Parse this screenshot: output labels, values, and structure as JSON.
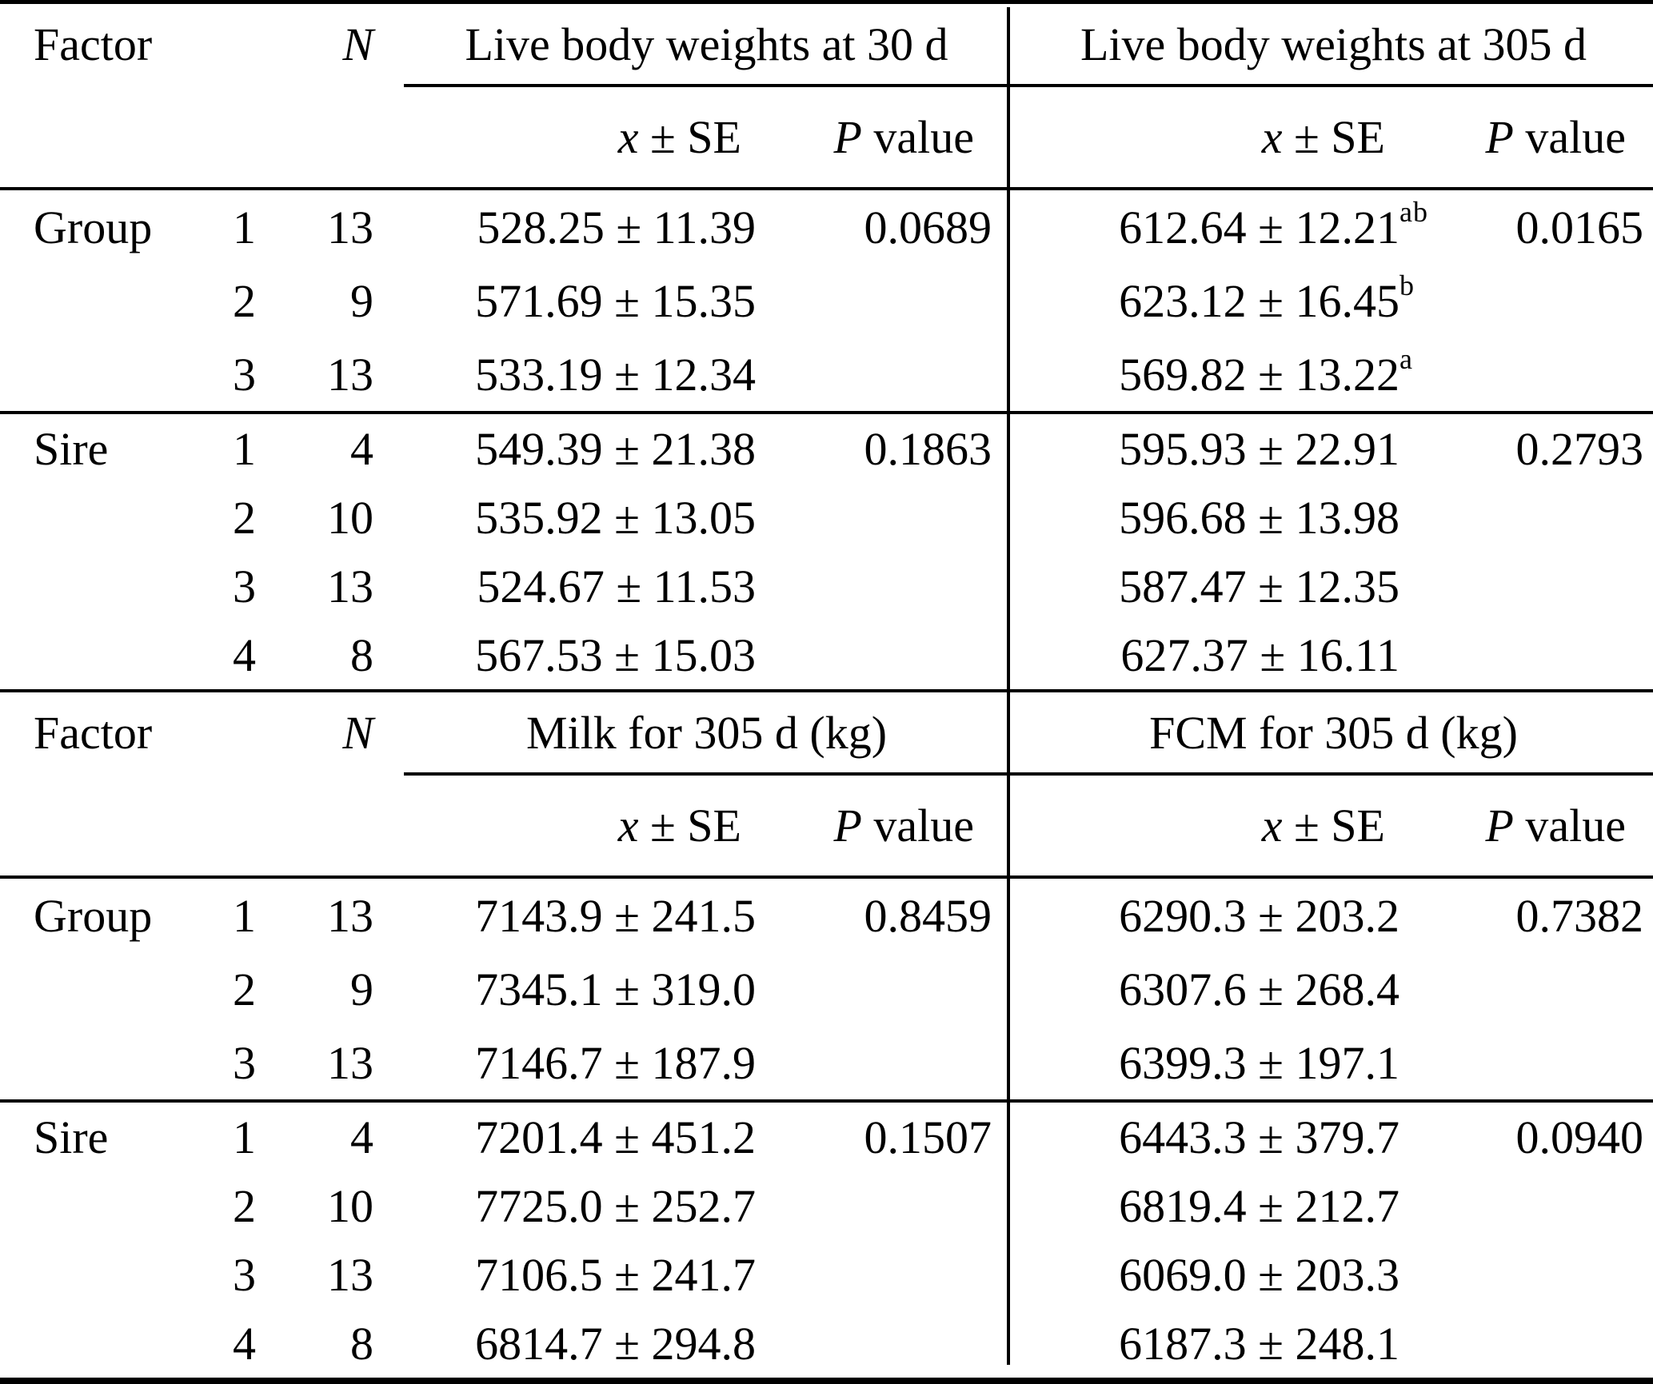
{
  "table": {
    "separator_color": "#000000",
    "background_color": "#ffffff",
    "sections": [
      {
        "factor_header": "Factor",
        "n_header": "N",
        "span1": "Live body weights at 30 d",
        "span2": "Live body weights at 305 d",
        "mean_header_x": "x",
        "mean_header_rest": "± SE",
        "p_header_p": "P",
        "p_header_rest": "value",
        "blocks": [
          {
            "factor": "Group",
            "rows": [
              {
                "level": "1",
                "n": "13",
                "mean1": "528.25 ± 11.39",
                "p1": "0.0689",
                "mean2": "612.64 ± 12.21",
                "sup2": "ab",
                "p2": "0.0165"
              },
              {
                "level": "2",
                "n": "9",
                "mean1": "571.69 ± 15.35",
                "p1": "",
                "mean2": "623.12 ± 16.45",
                "sup2": "b",
                "p2": ""
              },
              {
                "level": "3",
                "n": "13",
                "mean1": "533.19 ± 12.34",
                "p1": "",
                "mean2": "569.82 ± 13.22",
                "sup2": "a",
                "p2": ""
              }
            ]
          },
          {
            "factor": "Sire",
            "rows": [
              {
                "level": "1",
                "n": "4",
                "mean1": "549.39 ± 21.38",
                "p1": "0.1863",
                "mean2": "595.93 ± 22.91",
                "sup2": "",
                "p2": "0.2793"
              },
              {
                "level": "2",
                "n": "10",
                "mean1": "535.92 ± 13.05",
                "p1": "",
                "mean2": "596.68 ± 13.98",
                "sup2": "",
                "p2": ""
              },
              {
                "level": "3",
                "n": "13",
                "mean1": "524.67 ± 11.53",
                "p1": "",
                "mean2": "587.47 ± 12.35",
                "sup2": "",
                "p2": ""
              },
              {
                "level": "4",
                "n": "8",
                "mean1": "567.53 ± 15.03",
                "p1": "",
                "mean2": "627.37 ± 16.11",
                "sup2": "",
                "p2": ""
              }
            ]
          }
        ]
      },
      {
        "factor_header": "Factor",
        "n_header": "N",
        "span1": "Milk for 305 d (kg)",
        "span2": "FCM for 305 d (kg)",
        "mean_header_x": "x",
        "mean_header_rest": "± SE",
        "p_header_p": "P",
        "p_header_rest": "value",
        "blocks": [
          {
            "factor": "Group",
            "rows": [
              {
                "level": "1",
                "n": "13",
                "mean1": "7143.9 ± 241.5",
                "p1": "0.8459",
                "mean2": "6290.3 ± 203.2",
                "sup2": "",
                "p2": "0.7382"
              },
              {
                "level": "2",
                "n": "9",
                "mean1": "7345.1 ± 319.0",
                "p1": "",
                "mean2": "6307.6 ± 268.4",
                "sup2": "",
                "p2": ""
              },
              {
                "level": "3",
                "n": "13",
                "mean1": "7146.7 ± 187.9",
                "p1": "",
                "mean2": "6399.3 ± 197.1",
                "sup2": "",
                "p2": ""
              }
            ]
          },
          {
            "factor": "Sire",
            "rows": [
              {
                "level": "1",
                "n": "4",
                "mean1": "7201.4 ± 451.2",
                "p1": "0.1507",
                "mean2": "6443.3 ± 379.7",
                "sup2": "",
                "p2": "0.0940"
              },
              {
                "level": "2",
                "n": "10",
                "mean1": "7725.0 ± 252.7",
                "p1": "",
                "mean2": "6819.4 ± 212.7",
                "sup2": "",
                "p2": ""
              },
              {
                "level": "3",
                "n": "13",
                "mean1": "7106.5 ± 241.7",
                "p1": "",
                "mean2": "6069.0 ± 203.3",
                "sup2": "",
                "p2": ""
              },
              {
                "level": "4",
                "n": "8",
                "mean1": "6814.7 ± 294.8",
                "p1": "",
                "mean2": "6187.3 ± 248.1",
                "sup2": "",
                "p2": ""
              }
            ]
          }
        ]
      }
    ]
  }
}
